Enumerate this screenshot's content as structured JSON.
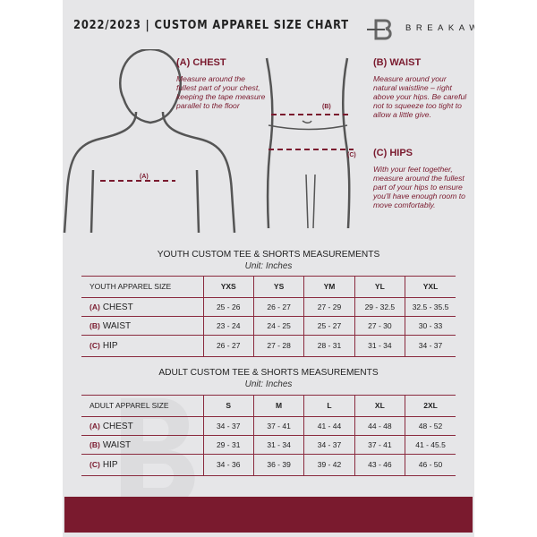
{
  "header": {
    "title": "2022/2023 | CUSTOM APPAREL SIZE CHART",
    "brand": "BREAKAWAY"
  },
  "guides": {
    "chest": {
      "heading": "(A) CHEST",
      "text": "Measure around the fullest part of your chest, keeping the tape measure parallel to the floor",
      "marker": "(A)"
    },
    "waist": {
      "heading": "(B) WAIST",
      "text": "Measure around your natural waistline – right above your hips. Be careful not to squeeze too tight to allow a little give.",
      "marker": "(B)"
    },
    "hips": {
      "heading": "(C) HIPS",
      "text": "With your feet together, measure around the fullest part of your hips to ensure you'll have enough room to move comfortably.",
      "marker": "(C)"
    }
  },
  "youth": {
    "title": "YOUTH CUSTOM TEE & SHORTS MEASUREMENTS",
    "unit": "Unit: Inches",
    "header": [
      "YOUTH APPAREL SIZE",
      "YXS",
      "YS",
      "YM",
      "YL",
      "YXL"
    ],
    "rows": [
      {
        "code": "(A)",
        "label": "CHEST",
        "values": [
          "25 - 26",
          "26 - 27",
          "27 - 29",
          "29 - 32.5",
          "32.5 - 35.5"
        ]
      },
      {
        "code": "(B)",
        "label": "WAIST",
        "values": [
          "23 - 24",
          "24 - 25",
          "25 - 27",
          "27 - 30",
          "30 - 33"
        ]
      },
      {
        "code": "(C)",
        "label": "HIP",
        "values": [
          "26 - 27",
          "27 - 28",
          "28 - 31",
          "31 - 34",
          "34 - 37"
        ]
      }
    ]
  },
  "adult": {
    "title": "ADULT CUSTOM TEE & SHORTS MEASUREMENTS",
    "unit": "Unit: Inches",
    "header": [
      "ADULT APPAREL SIZE",
      "S",
      "M",
      "L",
      "XL",
      "2XL"
    ],
    "rows": [
      {
        "code": "(A)",
        "label": "CHEST",
        "values": [
          "34 - 37",
          "37 - 41",
          "41 - 44",
          "44 - 48",
          "48 - 52"
        ]
      },
      {
        "code": "(B)",
        "label": "WAIST",
        "values": [
          "29 - 31",
          "31 - 34",
          "34 - 37",
          "37 - 41",
          "41 - 45.5"
        ]
      },
      {
        "code": "(C)",
        "label": "HIP",
        "values": [
          "34 - 36",
          "36 - 39",
          "39 - 42",
          "43 - 46",
          "46 - 50"
        ]
      }
    ]
  },
  "colors": {
    "accent": "#7a1a2e",
    "background": "#e6e6e8"
  }
}
